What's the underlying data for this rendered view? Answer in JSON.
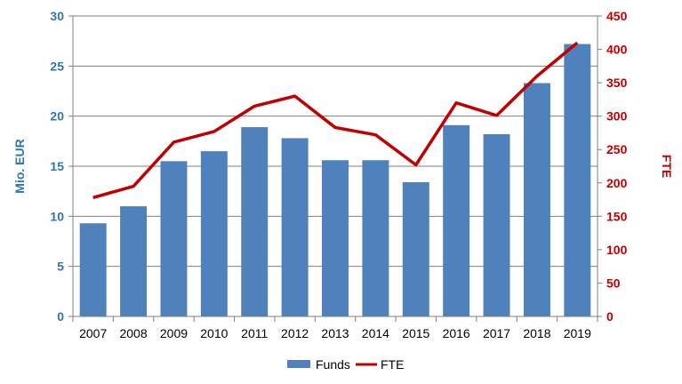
{
  "chart_data": {
    "type": "bar",
    "categories": [
      "2007",
      "2008",
      "2009",
      "2010",
      "2011",
      "2012",
      "2013",
      "2014",
      "2015",
      "2016",
      "2017",
      "2018",
      "2019"
    ],
    "series": [
      {
        "name": "Funds",
        "type": "bar",
        "axis": "left",
        "color": "#4f81bd",
        "values": [
          9.3,
          11.0,
          15.5,
          16.5,
          18.9,
          17.8,
          15.6,
          15.6,
          13.4,
          19.1,
          18.2,
          23.3,
          27.2
        ]
      },
      {
        "name": "FTE",
        "type": "line",
        "axis": "right",
        "color": "#c00000",
        "values": [
          178,
          195,
          261,
          277,
          315,
          330,
          283,
          272,
          227,
          320,
          301,
          360,
          410
        ]
      }
    ],
    "ylabel": "Mio. EUR",
    "ylim": [
      0,
      30
    ],
    "yticks": [
      "0",
      "5",
      "10",
      "15",
      "20",
      "25",
      "30"
    ],
    "y2label": "FTE",
    "y2lim": [
      0,
      450
    ],
    "y2ticks": [
      "0",
      "50",
      "100",
      "150",
      "200",
      "250",
      "300",
      "350",
      "400",
      "450"
    ],
    "grid": true,
    "legend": "bottom",
    "axis_colors": {
      "left": "#2e75b6",
      "right": "#c00000"
    }
  }
}
